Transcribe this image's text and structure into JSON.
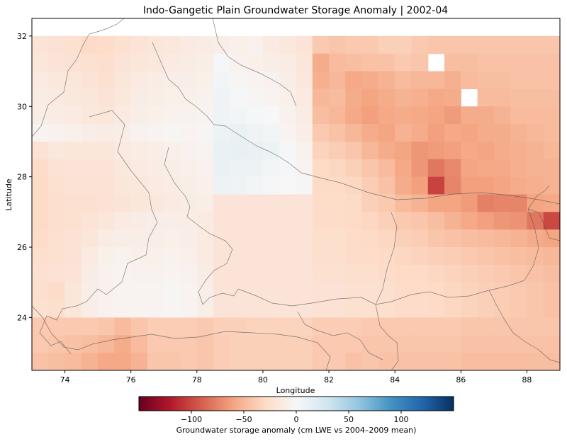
{
  "chart_data": {
    "type": "heatmap",
    "title": "Indo-Gangetic Plain Groundwater Storage Anomaly  |  2002-04",
    "xlabel": "Longitude",
    "ylabel": "Latitude",
    "xlim": [
      73.0,
      89.0
    ],
    "ylim": [
      22.5,
      32.5
    ],
    "x_ticks": [
      74,
      76,
      78,
      80,
      82,
      84,
      86,
      88
    ],
    "y_ticks": [
      24,
      26,
      28,
      30,
      32
    ],
    "grid": false,
    "cell_size_deg": 0.5,
    "lon_start": 73.0,
    "lat_top": 32.0,
    "value_range": [
      -150,
      150
    ],
    "colormap": "RdBu",
    "colorbar": {
      "label": "Groundwater storage anomaly (cm LWE vs 2004–2009 mean)",
      "ticks": [
        -100,
        -50,
        0,
        50,
        100
      ],
      "tick_labels": [
        "−100",
        "−50",
        "0",
        "50",
        "100"
      ],
      "min": -150,
      "max": 150,
      "orientation": "horizontal"
    },
    "grid_values": [
      [
        -20,
        -22,
        -24,
        -30,
        -28,
        -24,
        -20,
        -18,
        -16,
        -14,
        -12,
        -10,
        -8,
        -6,
        -14,
        -16,
        -20,
        -40,
        -42,
        -40,
        -40,
        -36,
        -36,
        -40,
        -42,
        -42,
        -42,
        -42,
        -42,
        -42,
        -42,
        -42
      ],
      [
        -18,
        -20,
        -22,
        -24,
        -26,
        -20,
        -18,
        -16,
        -14,
        -12,
        -10,
        2,
        -6,
        -8,
        -10,
        -12,
        -18,
        -56,
        -48,
        -46,
        -44,
        -44,
        -40,
        -42,
        null,
        -46,
        -46,
        -44,
        -44,
        -44,
        -44,
        -44
      ],
      [
        -14,
        -16,
        -18,
        -20,
        -24,
        -18,
        -14,
        -12,
        -10,
        -10,
        -8,
        4,
        -2,
        -4,
        -6,
        -10,
        -16,
        -54,
        -50,
        -58,
        -56,
        -52,
        -48,
        -50,
        -50,
        -54,
        -48,
        -46,
        -46,
        -44,
        -44,
        -44
      ],
      [
        -12,
        -14,
        -16,
        -18,
        -20,
        -16,
        -12,
        -10,
        -8,
        -8,
        -6,
        6,
        2,
        -2,
        -4,
        -8,
        -14,
        -50,
        -48,
        -56,
        -60,
        -56,
        -52,
        -54,
        -58,
        -56,
        null,
        -48,
        -48,
        -46,
        -46,
        -46
      ],
      [
        -10,
        -12,
        -14,
        -16,
        -18,
        -14,
        -10,
        -8,
        -6,
        -6,
        -4,
        6,
        4,
        2,
        0,
        -6,
        -12,
        -46,
        -50,
        -58,
        -62,
        -58,
        -56,
        -58,
        -60,
        -64,
        -56,
        -56,
        -52,
        -48,
        -48,
        -48
      ],
      [
        -4,
        -6,
        -8,
        -10,
        -12,
        -10,
        -6,
        -4,
        -2,
        -4,
        -2,
        8,
        10,
        6,
        4,
        -4,
        -10,
        -40,
        -44,
        -50,
        -56,
        -60,
        -52,
        -56,
        -62,
        -58,
        -60,
        -56,
        -56,
        -52,
        -50,
        -48
      ],
      [
        -22,
        -16,
        -18,
        -18,
        -18,
        -14,
        -12,
        -10,
        -8,
        -6,
        -4,
        10,
        12,
        10,
        8,
        2,
        -6,
        -34,
        -38,
        -42,
        -50,
        -56,
        -60,
        -66,
        -64,
        -62,
        -58,
        -60,
        -56,
        -54,
        -52,
        -50
      ],
      [
        -28,
        -22,
        -20,
        -20,
        -20,
        -16,
        -14,
        -12,
        -10,
        -8,
        -6,
        10,
        8,
        8,
        4,
        2,
        -4,
        -30,
        -32,
        -36,
        -42,
        -48,
        -58,
        -66,
        -80,
        -72,
        -60,
        -58,
        -58,
        -54,
        -52,
        -52
      ],
      [
        -30,
        -24,
        -22,
        -22,
        -22,
        -18,
        -16,
        -14,
        -12,
        -10,
        -8,
        8,
        6,
        4,
        2,
        0,
        -2,
        -30,
        -30,
        -32,
        -38,
        -44,
        -56,
        -62,
        -102,
        -74,
        -62,
        -62,
        -60,
        -56,
        -54,
        -52
      ],
      [
        -30,
        -26,
        -24,
        -24,
        -22,
        -20,
        -18,
        -16,
        -14,
        -12,
        -10,
        -20,
        -20,
        -20,
        -20,
        -20,
        -20,
        -28,
        -28,
        -30,
        -36,
        -40,
        -48,
        -52,
        -60,
        -60,
        -64,
        -76,
        -74,
        -74,
        -60,
        -58
      ],
      [
        -30,
        -26,
        -24,
        -20,
        -18,
        -14,
        -12,
        -10,
        -10,
        -10,
        -14,
        -20,
        -20,
        -20,
        -20,
        -20,
        -20,
        -28,
        -28,
        -30,
        -32,
        -36,
        -40,
        -42,
        -46,
        -52,
        -58,
        -62,
        -66,
        -68,
        -80,
        -100
      ],
      [
        -28,
        -24,
        -22,
        -18,
        -12,
        -10,
        -10,
        -10,
        -8,
        -10,
        -14,
        -20,
        -20,
        -20,
        -20,
        -20,
        -20,
        -26,
        -26,
        -28,
        -30,
        -32,
        -36,
        -38,
        -42,
        -44,
        -46,
        -48,
        -50,
        -52,
        -56,
        -60
      ],
      [
        -26,
        -24,
        -22,
        -14,
        -8,
        -6,
        -8,
        -8,
        -6,
        -8,
        -14,
        -20,
        -20,
        -20,
        -20,
        -20,
        -20,
        -26,
        -26,
        -28,
        -28,
        -30,
        -32,
        -34,
        -36,
        -38,
        -40,
        -42,
        -44,
        -46,
        -48,
        -50
      ],
      [
        -24,
        -22,
        -20,
        -12,
        -6,
        -4,
        -6,
        -6,
        -4,
        -6,
        -12,
        -20,
        -20,
        -20,
        -20,
        -20,
        -20,
        -24,
        -24,
        -26,
        -26,
        -28,
        -30,
        -30,
        -32,
        -34,
        -36,
        -38,
        -40,
        -42,
        -44,
        -46
      ],
      [
        -26,
        -28,
        -18,
        -10,
        -6,
        -4,
        -4,
        -4,
        -2,
        -4,
        -10,
        -20,
        -20,
        -20,
        -20,
        -20,
        -20,
        -22,
        -22,
        -24,
        -24,
        -26,
        -28,
        -28,
        -30,
        -32,
        -34,
        -36,
        -38,
        -40,
        -42,
        -44
      ],
      [
        -24,
        -26,
        -18,
        -10,
        -6,
        -4,
        -4,
        -4,
        -2,
        -4,
        -10,
        -20,
        -20,
        -20,
        -20,
        -20,
        -20,
        -22,
        -22,
        -24,
        -24,
        -26,
        -28,
        -28,
        -30,
        -32,
        -34,
        -36,
        -38,
        -40,
        -42,
        -44
      ],
      [
        -40,
        -40,
        -40,
        -40,
        -42,
        -48,
        -42,
        -38,
        -38,
        -38,
        -40,
        -36,
        -36,
        -34,
        -34,
        -34,
        -34,
        -38,
        -38,
        -38,
        -40,
        -40,
        -40,
        -40,
        -40,
        -40,
        -42,
        -42,
        -42,
        -42,
        -42,
        -42
      ],
      [
        -40,
        -42,
        -44,
        -46,
        -50,
        -56,
        -48,
        -40,
        -40,
        -40,
        -42,
        -38,
        -36,
        -36,
        -36,
        -36,
        -36,
        -40,
        -40,
        -40,
        -42,
        -42,
        -42,
        -42,
        -42,
        -42,
        -44,
        -44,
        -44,
        -44,
        -44,
        -44
      ],
      [
        -44,
        -46,
        -48,
        -52,
        -58,
        -58,
        -52,
        -42,
        -42,
        -40,
        -42,
        -38,
        -36,
        -36,
        -36,
        -36,
        -36,
        -40,
        -40,
        -44,
        -42,
        -44,
        -44,
        -44,
        -44,
        -44,
        -46,
        -46,
        -46,
        -46,
        -46,
        -46
      ],
      [
        -46,
        -50,
        -56,
        -58,
        -62,
        -60,
        -54,
        -44,
        -38,
        -32,
        -36,
        -38,
        -38,
        -38,
        -38,
        -38,
        -38,
        -40,
        -46,
        -44,
        -44,
        -44,
        -44,
        -44,
        -44,
        -44,
        -46,
        -46,
        -46,
        -46,
        -46,
        -46
      ],
      [
        -48,
        -60,
        -62,
        -60,
        -60,
        -58,
        -52,
        -44,
        -38,
        -34,
        -36,
        -40,
        -40,
        -40,
        -40,
        -40,
        -40,
        -40,
        -44,
        -44,
        -44,
        -44,
        -44,
        -44,
        -44,
        -44,
        -46,
        -46,
        -46,
        -46,
        -46,
        -46
      ],
      [
        -54,
        -60,
        -62,
        -60,
        -60,
        -58,
        -52,
        -44,
        -42,
        -40,
        -40,
        -42,
        -42,
        -42,
        -42,
        -42,
        -42,
        -42,
        -44,
        -44,
        -44,
        -44,
        -44,
        -44,
        -44,
        -44,
        -46,
        -46,
        -46,
        -46,
        -46,
        -46
      ]
    ]
  }
}
